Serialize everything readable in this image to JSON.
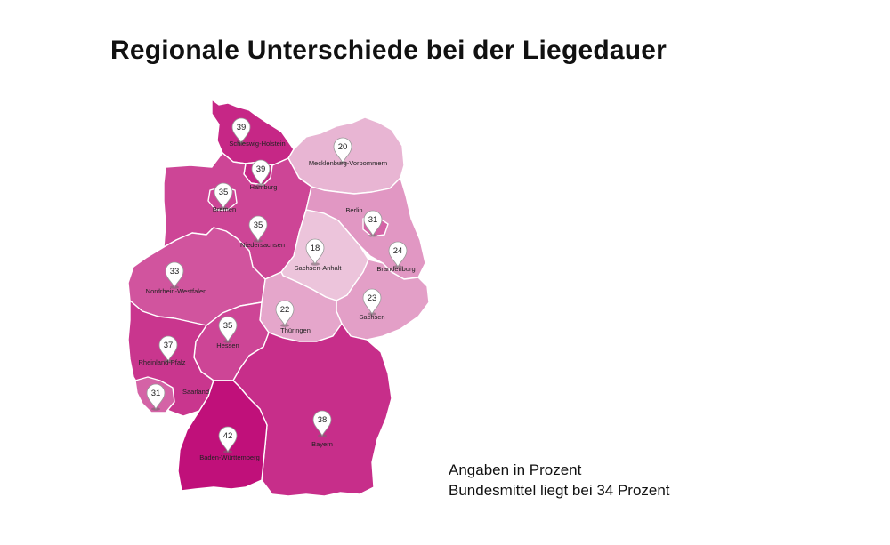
{
  "title": "Regionale Unterschiede bei der Liegedauer",
  "colors": {
    "scale_low": "#ECC4DB",
    "scale_high": "#C0107A",
    "stroke": "#FFFFFF",
    "pin_fill": "#FFFFFF",
    "pin_stroke": "#999999"
  },
  "notes": {
    "line1": "Angaben in Prozent",
    "line2": "Bundesmittel liegt bei 34 Prozent"
  },
  "regions": [
    {
      "id": "schleswig-holstein",
      "name": "Schleswig-Holstein",
      "value": 39
    },
    {
      "id": "mecklenburg-vorpommern",
      "name": "Mecklenburg-Vorpommern",
      "value": 20
    },
    {
      "id": "hamburg",
      "name": "Hamburg",
      "value": 39
    },
    {
      "id": "bremen",
      "name": "Bremen",
      "value": 35
    },
    {
      "id": "niedersachsen",
      "name": "Niedersachsen",
      "value": 35
    },
    {
      "id": "berlin",
      "name": "Berlin",
      "value": 31
    },
    {
      "id": "brandenburg",
      "name": "Brandenburg",
      "value": 24
    },
    {
      "id": "sachsen-anhalt",
      "name": "Sachsen-Anhalt",
      "value": 18
    },
    {
      "id": "nordrhein-westfalen",
      "name": "Nordrhein-Westfalen",
      "value": 33
    },
    {
      "id": "sachsen",
      "name": "Sachsen",
      "value": 23
    },
    {
      "id": "thueringen",
      "name": "Thüringen",
      "value": 22
    },
    {
      "id": "hessen",
      "name": "Hessen",
      "value": 35
    },
    {
      "id": "rheinland-pfalz",
      "name": "Rheinland-Pfalz",
      "value": 37
    },
    {
      "id": "saarland",
      "name": "Saarland",
      "value": 31
    },
    {
      "id": "bayern",
      "name": "Bayern",
      "value": 38
    },
    {
      "id": "baden-wuerttemberg",
      "name": "Baden-Württemberg",
      "value": 42
    }
  ]
}
